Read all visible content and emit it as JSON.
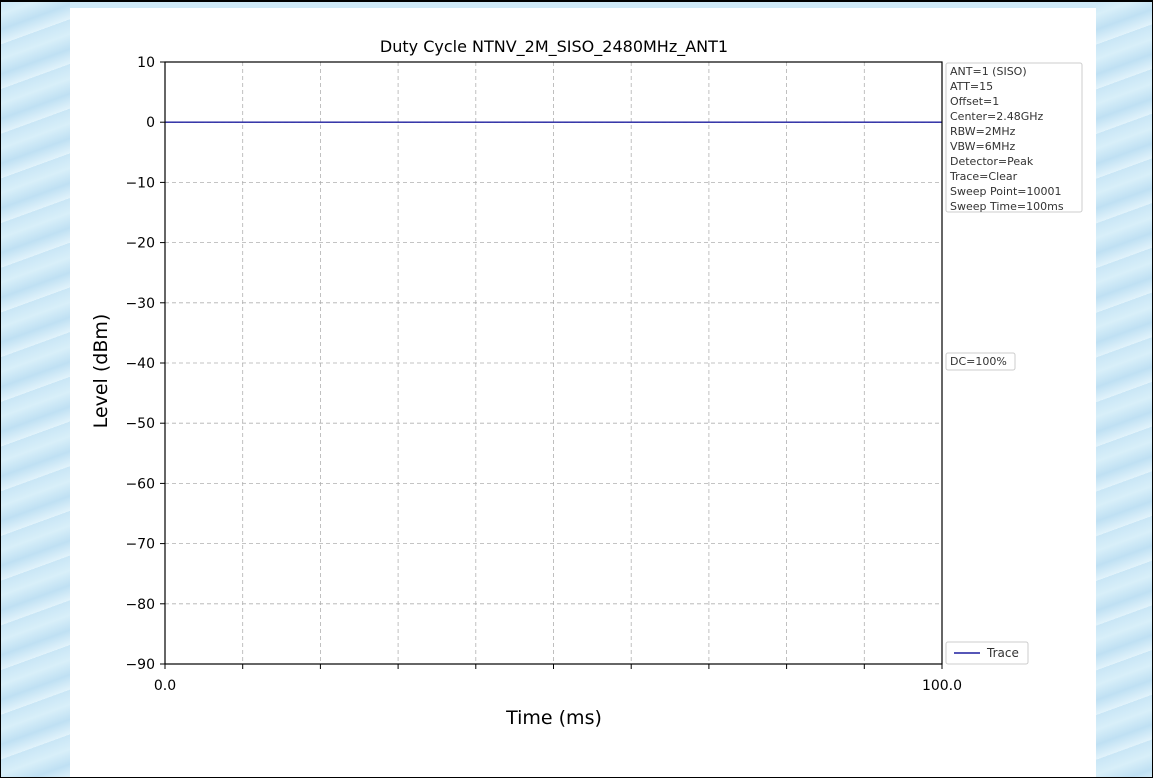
{
  "chart_data": {
    "type": "line",
    "title": "Duty Cycle NTNV_2M_SISO_2480MHz_ANT1",
    "xlabel": "Time (ms)",
    "ylabel": "Level (dBm)",
    "xlim": [
      0,
      100
    ],
    "ylim": [
      -90,
      10
    ],
    "x_tick_labels": [
      "0.0",
      "100.0"
    ],
    "y_ticks": [
      10,
      0,
      -10,
      -20,
      -30,
      -40,
      -50,
      -60,
      -70,
      -80,
      -90
    ],
    "y_tick_labels": [
      "10",
      "0",
      "−10",
      "−20",
      "−30",
      "−40",
      "−50",
      "−60",
      "−70",
      "−80",
      "−90"
    ],
    "grid": true,
    "series": [
      {
        "name": "Trace",
        "color": "#1f1f9f",
        "x": [
          0,
          100
        ],
        "y": [
          0,
          0
        ]
      }
    ],
    "info_box": [
      "ANT=1 (SISO)",
      "ATT=15",
      "Offset=1",
      "Center=2.48GHz",
      "RBW=2MHz",
      "VBW=6MHz",
      "Detector=Peak",
      "Trace=Clear",
      "Sweep Point=10001",
      "Sweep Time=100ms"
    ],
    "annotation": "DC=100%",
    "legend_position": "outside-right-bottom"
  }
}
